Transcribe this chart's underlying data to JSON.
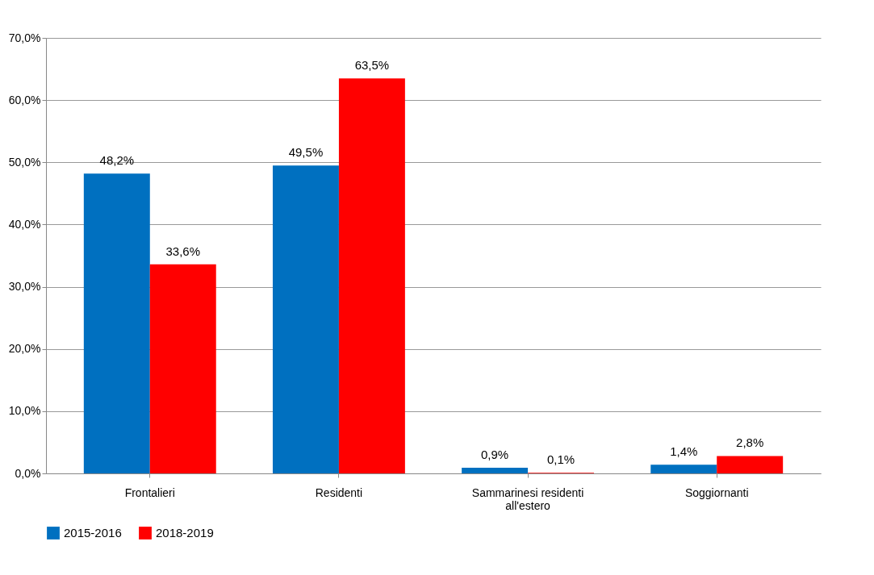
{
  "chart_data": {
    "type": "bar",
    "categories": [
      "Frontalieri",
      "Residenti",
      "Sammarinesi residenti all'estero",
      "Soggiornanti"
    ],
    "series": [
      {
        "name": "2015-2016",
        "color": "#0070c0",
        "values": [
          48.2,
          49.5,
          0.9,
          1.4
        ],
        "value_labels": [
          "48,2%",
          "49,5%",
          "0,9%",
          "1,4%"
        ]
      },
      {
        "name": "2018-2019",
        "color": "#ff0000",
        "values": [
          33.6,
          63.5,
          0.1,
          2.8
        ],
        "value_labels": [
          "33,6%",
          "63,5%",
          "0,1%",
          "2,8%"
        ]
      }
    ],
    "ylim": [
      0,
      70
    ],
    "yticks": [
      {
        "value": 0,
        "label": "0,0%"
      },
      {
        "value": 10,
        "label": "10,0%"
      },
      {
        "value": 20,
        "label": "20,0%"
      },
      {
        "value": 30,
        "label": "30,0%"
      },
      {
        "value": 40,
        "label": "40,0%"
      },
      {
        "value": 50,
        "label": "50,0%"
      },
      {
        "value": 60,
        "label": "60,0%"
      },
      {
        "value": 70,
        "label": "70,0%"
      }
    ],
    "grid": "y",
    "legend": "bottom"
  }
}
